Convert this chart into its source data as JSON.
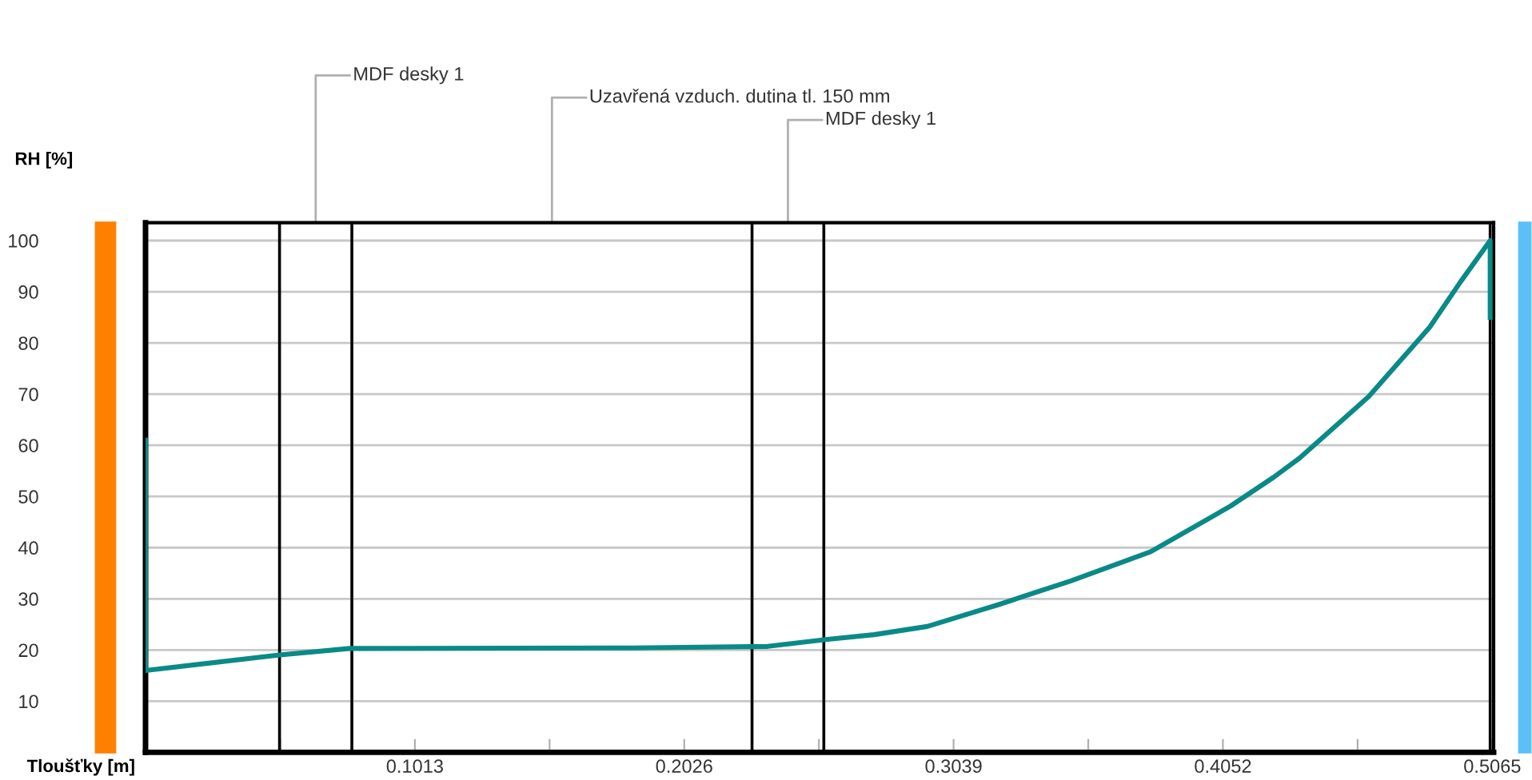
{
  "chart_data": {
    "type": "line",
    "xlabel": "Tloušťky [m]",
    "ylabel": "RH [%]",
    "series": [
      {
        "color": "#0a8a87",
        "x": [
          0,
          0,
          0.0498,
          0.0768,
          0.183,
          0.234,
          0.2551,
          0.274,
          0.294,
          0.3204,
          0.348,
          0.378,
          0.408,
          0.4244,
          0.434,
          0.46,
          0.483,
          0.4945,
          0.5057,
          0.5057
        ],
        "values": [
          61,
          16,
          19,
          20.3,
          20.4,
          20.7,
          22,
          23,
          24.6,
          28.8,
          33.5,
          39.2,
          48.1,
          53.8,
          57.5,
          69.5,
          83.1,
          91.9,
          100,
          85
        ]
      }
    ],
    "xlim": [
      0,
      0.507
    ],
    "ylim": [
      0,
      103.5
    ],
    "xticks": [
      {
        "value": 0.05065,
        "label": null
      },
      0.1013,
      {
        "value": 0.15195,
        "label": null
      },
      0.2026,
      {
        "value": 0.25325,
        "label": null
      },
      0.3039,
      {
        "value": 0.35455,
        "label": null
      },
      0.4052,
      {
        "value": 0.45585,
        "label": null
      },
      0.5065
    ],
    "yticks": [
      10,
      20,
      30,
      40,
      50,
      60,
      70,
      80,
      90,
      100
    ],
    "grid": "y",
    "marker": "none",
    "line_style": "solid",
    "legend": false,
    "ref_lines": [
      {
        "axis": "x",
        "value": 0.0504,
        "label": null,
        "color": "#000000"
      },
      {
        "axis": "x",
        "value": 0.0776,
        "label": null,
        "color": "#000000"
      },
      {
        "axis": "x",
        "value": 0.2281,
        "label": null,
        "color": "#000000"
      },
      {
        "axis": "x",
        "value": 0.2551,
        "label": null,
        "color": "#000000"
      },
      {
        "axis": "x",
        "value": 0.5057,
        "label": null,
        "color": "#000000"
      }
    ],
    "annotations": [
      "MDF desky 1",
      "Uzavřená vzduch. dutina tl. 150 mm",
      "MDF desky 1"
    ]
  }
}
